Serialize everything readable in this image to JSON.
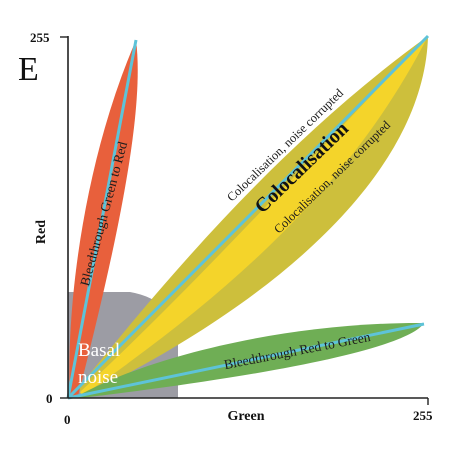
{
  "figure": {
    "panel_letter": "E",
    "x_axis": {
      "title": "Green",
      "min_label": "0",
      "max_label": "255"
    },
    "y_axis": {
      "title": "Red",
      "min_label": "0",
      "max_label": "255"
    }
  },
  "regions": {
    "bleed_green_to_red": {
      "label": "Bleedthrough Green to Red",
      "color": "#e8603c"
    },
    "coloc_noise": {
      "label": "Colocalisation, noise corrupted",
      "color": "#cdbf3c"
    },
    "coloc_core": {
      "label": "Colocalisation",
      "color": "#f4d42a"
    },
    "bleed_red_to_green": {
      "label": "Bleedthrough Red to Green",
      "color": "#6fae55"
    },
    "basal_noise": {
      "line1": "Basal",
      "line2": "noise",
      "color": "#9c9ca4"
    },
    "trend_line_color": "#5ec3d8"
  }
}
